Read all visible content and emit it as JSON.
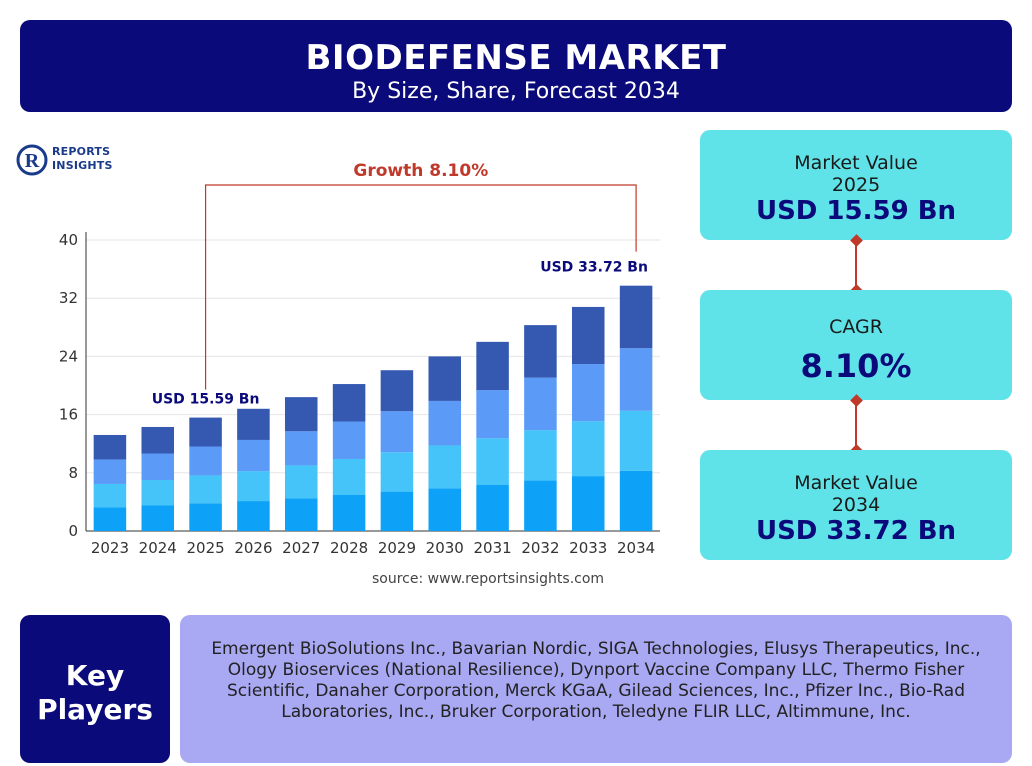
{
  "header": {
    "title": "BIODEFENSE MARKET",
    "subtitle": "By Size, Share, Forecast 2034"
  },
  "logo": {
    "line1": "REPORTS",
    "line2": "INSIGHTS",
    "mark_letter": "R",
    "brand_color": "#1a3a8a"
  },
  "chart_data": {
    "type": "bar",
    "stacked": true,
    "categories": [
      "2023",
      "2024",
      "2025",
      "2026",
      "2027",
      "2028",
      "2029",
      "2030",
      "2031",
      "2032",
      "2033",
      "2034"
    ],
    "totals": [
      13.2,
      14.3,
      15.59,
      16.8,
      18.4,
      20.2,
      22.1,
      24.0,
      26.0,
      28.3,
      30.8,
      33.72
    ],
    "segment_shares": [
      0.245,
      0.245,
      0.255,
      0.255
    ],
    "segment_colors": [
      "#0da2f7",
      "#44c4f9",
      "#5b9bf7",
      "#3558b0"
    ],
    "yticks": [
      0,
      8,
      16,
      24,
      32,
      40
    ],
    "ylim": [
      0,
      40
    ],
    "grid": true,
    "annotations": {
      "growth_label": "Growth 8.10%",
      "start_label": "USD 15.59 Bn",
      "end_label": "USD 33.72 Bn",
      "growth_color": "#c0392b",
      "label_color": "#0a0a7a"
    }
  },
  "source": "source: www.reportsinsights.com",
  "cards": {
    "value_2025": {
      "label": "Market Value",
      "year": "2025",
      "value": "USD 15.59 Bn"
    },
    "cagr": {
      "label": "CAGR",
      "value": "8.10%"
    },
    "value_2034": {
      "label": "Market Value",
      "year": "2034",
      "value": "USD 33.72 Bn"
    }
  },
  "key_players": {
    "label_line1": "Key",
    "label_line2": "Players",
    "list": "Emergent BioSolutions Inc., Bavarian Nordic, SIGA Technologies, Elusys Therapeutics, Inc., Ology Bioservices (National Resilience), Dynport Vaccine Company LLC, Thermo Fisher Scientific, Danaher Corporation, Merck KGaA, Gilead Sciences, Inc., Pfizer Inc., Bio-Rad Laboratories, Inc., Bruker Corporation, Teledyne FLIR LLC, Altimmune, Inc."
  },
  "colors": {
    "navy": "#0a0a7a",
    "cyan": "#5fe3e8",
    "lavender": "#a9a8f2",
    "accent_red": "#c0392b"
  }
}
